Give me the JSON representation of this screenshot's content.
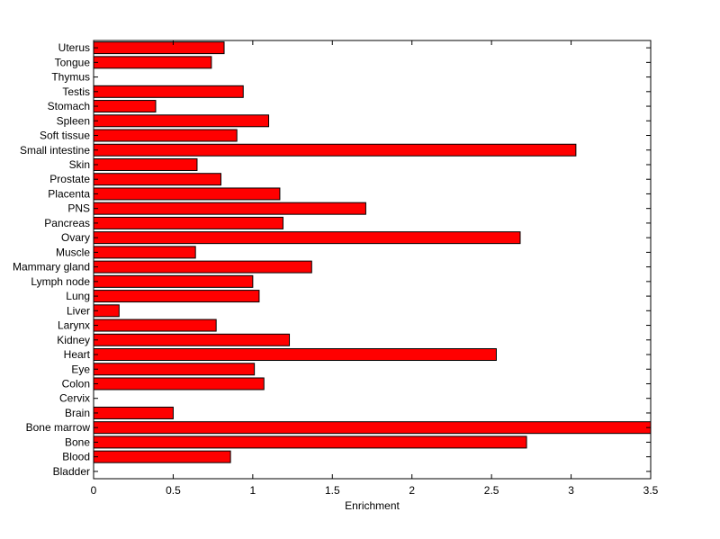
{
  "chart_data": {
    "type": "bar",
    "orientation": "horizontal",
    "categories": [
      "Bladder",
      "Blood",
      "Bone",
      "Bone marrow",
      "Brain",
      "Cervix",
      "Colon",
      "Eye",
      "Heart",
      "Kidney",
      "Larynx",
      "Liver",
      "Lung",
      "Lymph node",
      "Mammary gland",
      "Muscle",
      "Ovary",
      "Pancreas",
      "PNS",
      "Placenta",
      "Prostate",
      "Skin",
      "Small intestine",
      "Soft tissue",
      "Spleen",
      "Stomach",
      "Testis",
      "Thymus",
      "Tongue",
      "Uterus"
    ],
    "values": [
      0,
      0.86,
      2.72,
      3.5,
      0.5,
      0,
      1.07,
      1.01,
      2.53,
      1.23,
      0.77,
      0.16,
      1.04,
      1.0,
      1.37,
      0.64,
      2.68,
      1.19,
      1.71,
      1.17,
      0.8,
      0.65,
      3.03,
      0.9,
      1.1,
      0.39,
      0.94,
      0,
      0.74,
      0.82
    ],
    "title": "",
    "xlabel": "Enrichment",
    "ylabel": "",
    "xlim": [
      0,
      3.5
    ],
    "xticks": [
      "0",
      "0.5",
      "1",
      "1.5",
      "2",
      "2.5",
      "3",
      "3.5"
    ],
    "grid": false,
    "bar_color": "#ff0000",
    "edge_color": "#000000"
  }
}
